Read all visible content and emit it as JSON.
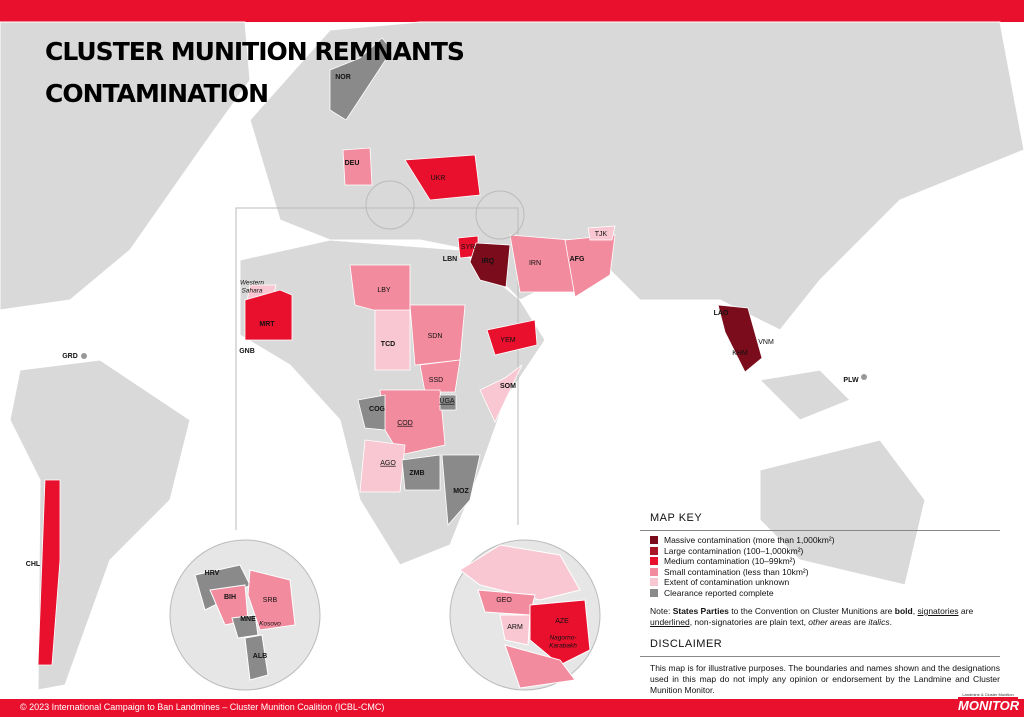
{
  "title": [
    "CLUSTER MUNITION REMNANTS",
    "CONTAMINATION"
  ],
  "countries": [
    "NOR",
    "DEU",
    "UKR",
    "SYR",
    "LBN",
    "IRQ",
    "IRN",
    "AFG",
    "TJK",
    "LBY",
    "MRT",
    "GNB",
    "TCD",
    "SDN",
    "SSD",
    "YEM",
    "SOM",
    "COG",
    "UGA",
    "COD",
    "AGO",
    "ZMB",
    "MOZ",
    "LAO",
    "KHM",
    "VNM",
    "GRD",
    "PLW",
    "CHL",
    "HRV",
    "BIH",
    "SRB",
    "MNE",
    "ALB",
    "GEO",
    "ARM",
    "AZE"
  ],
  "other_areas": {
    "western_sahara": [
      "Western",
      "Sahara"
    ],
    "kosovo": "Kosovo",
    "nagorno_karabakh": [
      "Nagorno-",
      "Karabakh"
    ]
  },
  "legend": {
    "title": "MAP KEY",
    "items": [
      "Massive contamination (more than 1,000km²)",
      "Large contamination (100–1,000km²)",
      "Medium contamination (10–99km²)",
      "Small contamination (less than 10km²)",
      "Extent of contamination unknown",
      "Clearance reported complete"
    ],
    "note": [
      "Note: ",
      "States Parties",
      " to the Convention on Cluster Munitions are ",
      "bold",
      ", ",
      "signatories",
      " are ",
      "underlined",
      ", non-signatories are plain text, ",
      "other areas",
      " are ",
      "italics",
      "."
    ]
  },
  "disclaimer": {
    "title": "DISCLAIMER",
    "text": "This map is for illustrative purposes. The boundaries and names shown and the designations used in this map do not imply any opinion or endorsement by the Landmine and Cluster Munition Monitor."
  },
  "footer": "© 2023 International Campaign to Ban Landmines – Cluster Munition Coalition (ICBL-CMC)",
  "logo": {
    "small": "Landmine & Cluster Munition",
    "big": "MONITOR"
  }
}
